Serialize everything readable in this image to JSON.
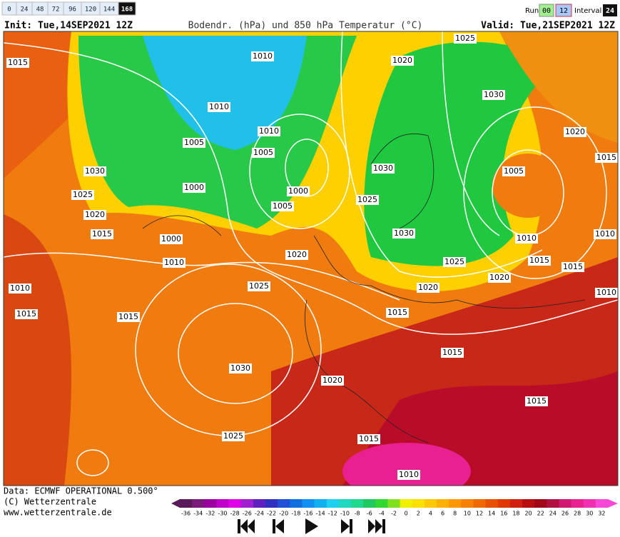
{
  "header": {
    "hours": [
      "0",
      "24",
      "48",
      "72",
      "96",
      "120",
      "144",
      "168"
    ],
    "selected_hour": "168",
    "run_label": "Run:",
    "runs": [
      "00",
      "12"
    ],
    "interval_label": "Interval",
    "interval": "24",
    "init": "Init: Tue,14SEP2021 12Z",
    "title": "Bodendr. (hPa) und 850 hPa Temperatur (°C)",
    "valid": "Valid: Tue,21SEP2021 12Z"
  },
  "map": {
    "isobar_labels": [
      "1015",
      "1010",
      "1010",
      "1010",
      "1005",
      "1005",
      "1030",
      "1000",
      "1000",
      "1005",
      "1025",
      "1020",
      "1015",
      "1000",
      "1010",
      "1020",
      "1025",
      "1010",
      "1015",
      "1015",
      "1030",
      "1025",
      "1020",
      "1015",
      "1010",
      "1020",
      "1025",
      "1030",
      "1020",
      "1015",
      "1005",
      "1030",
      "1025",
      "1030",
      "1010",
      "1010",
      "1025",
      "1020",
      "1015",
      "1015",
      "1010",
      "1020",
      "1015",
      "1015",
      "1015"
    ]
  },
  "footer": {
    "data": "Data: ECMWF OPERATIONAL 0.500°",
    "copyright": "(C) Wetterzentrale",
    "url": "www.wetterzentrale.de"
  },
  "scale": {
    "labels": [
      -36,
      -34,
      -32,
      -30,
      -28,
      -26,
      -24,
      -22,
      -20,
      -18,
      -16,
      -14,
      -12,
      -10,
      -8,
      -6,
      -4,
      -2,
      0,
      2,
      4,
      6,
      8,
      10,
      12,
      14,
      16,
      18,
      20,
      22,
      24,
      26,
      28,
      30,
      32
    ],
    "colors": [
      "#5a1a5a",
      "#7a1a7a",
      "#9a00a0",
      "#c000c8",
      "#e000e8",
      "#a020d0",
      "#6020c0",
      "#3030c0",
      "#2050d8",
      "#1070e0",
      "#1090f0",
      "#10b0f0",
      "#20d0f0",
      "#20d8c0",
      "#20d890",
      "#20c860",
      "#30d830",
      "#80e020",
      "#f0f000",
      "#ffe000",
      "#ffc800",
      "#ffb000",
      "#ff9800",
      "#f88000",
      "#f06800",
      "#e85000",
      "#e03800",
      "#d02010",
      "#b81010",
      "#a00818",
      "#b01040",
      "#d01870",
      "#e82090",
      "#f030b0",
      "#f848d8"
    ]
  }
}
